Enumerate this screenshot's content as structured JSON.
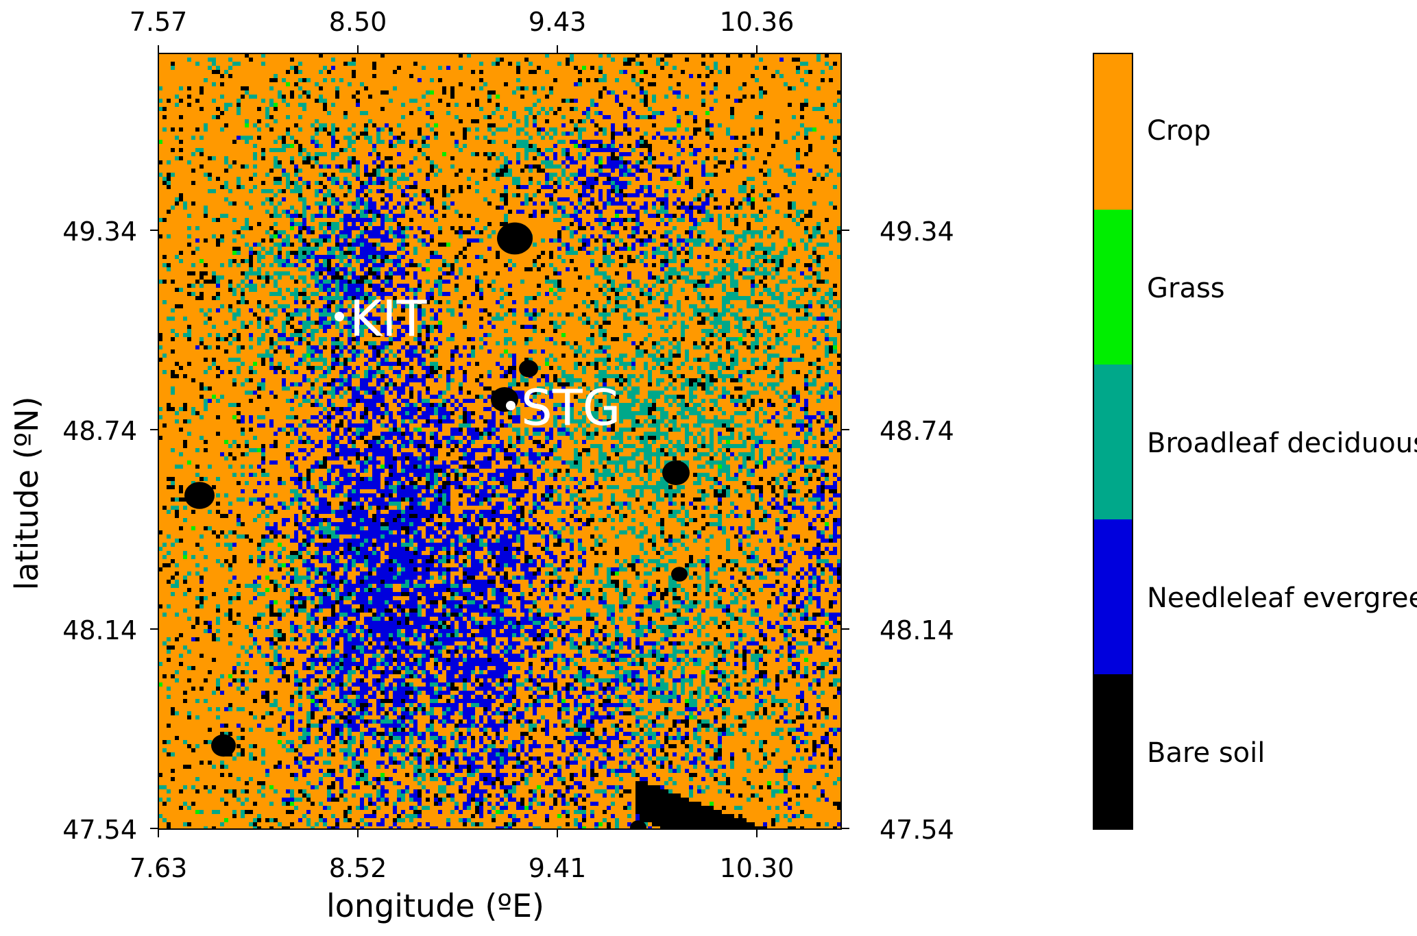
{
  "chart_data": {
    "type": "heatmap",
    "title": "",
    "xlabel": "longitude (ºE)",
    "ylabel": "latitude (ºN)",
    "x_ticks_bottom": [
      "7.63",
      "8.52",
      "9.41",
      "10.30"
    ],
    "x_ticks_top": [
      "7.57",
      "8.50",
      "9.43",
      "10.36"
    ],
    "y_ticks_left": [
      "49.34",
      "48.74",
      "48.14",
      "47.54"
    ],
    "y_ticks_right": [
      "49.34",
      "48.74",
      "48.14",
      "47.54"
    ],
    "sites": [
      {
        "name": "KIT",
        "lon": 8.43,
        "lat": 49.1
      },
      {
        "name": "STG",
        "lon": 9.2,
        "lat": 48.83
      }
    ],
    "legend": {
      "placement": "right",
      "classes": [
        {
          "name": "Crop",
          "color": "#FF9900"
        },
        {
          "name": "Grass",
          "color": "#00EE00"
        },
        {
          "name": "Broadleaf deciduous",
          "color": "#00A88A"
        },
        {
          "name": "Needleleaf evergreen",
          "color": "#0000DD"
        },
        {
          "name": "Bare soil",
          "color": "#000000"
        }
      ]
    }
  }
}
